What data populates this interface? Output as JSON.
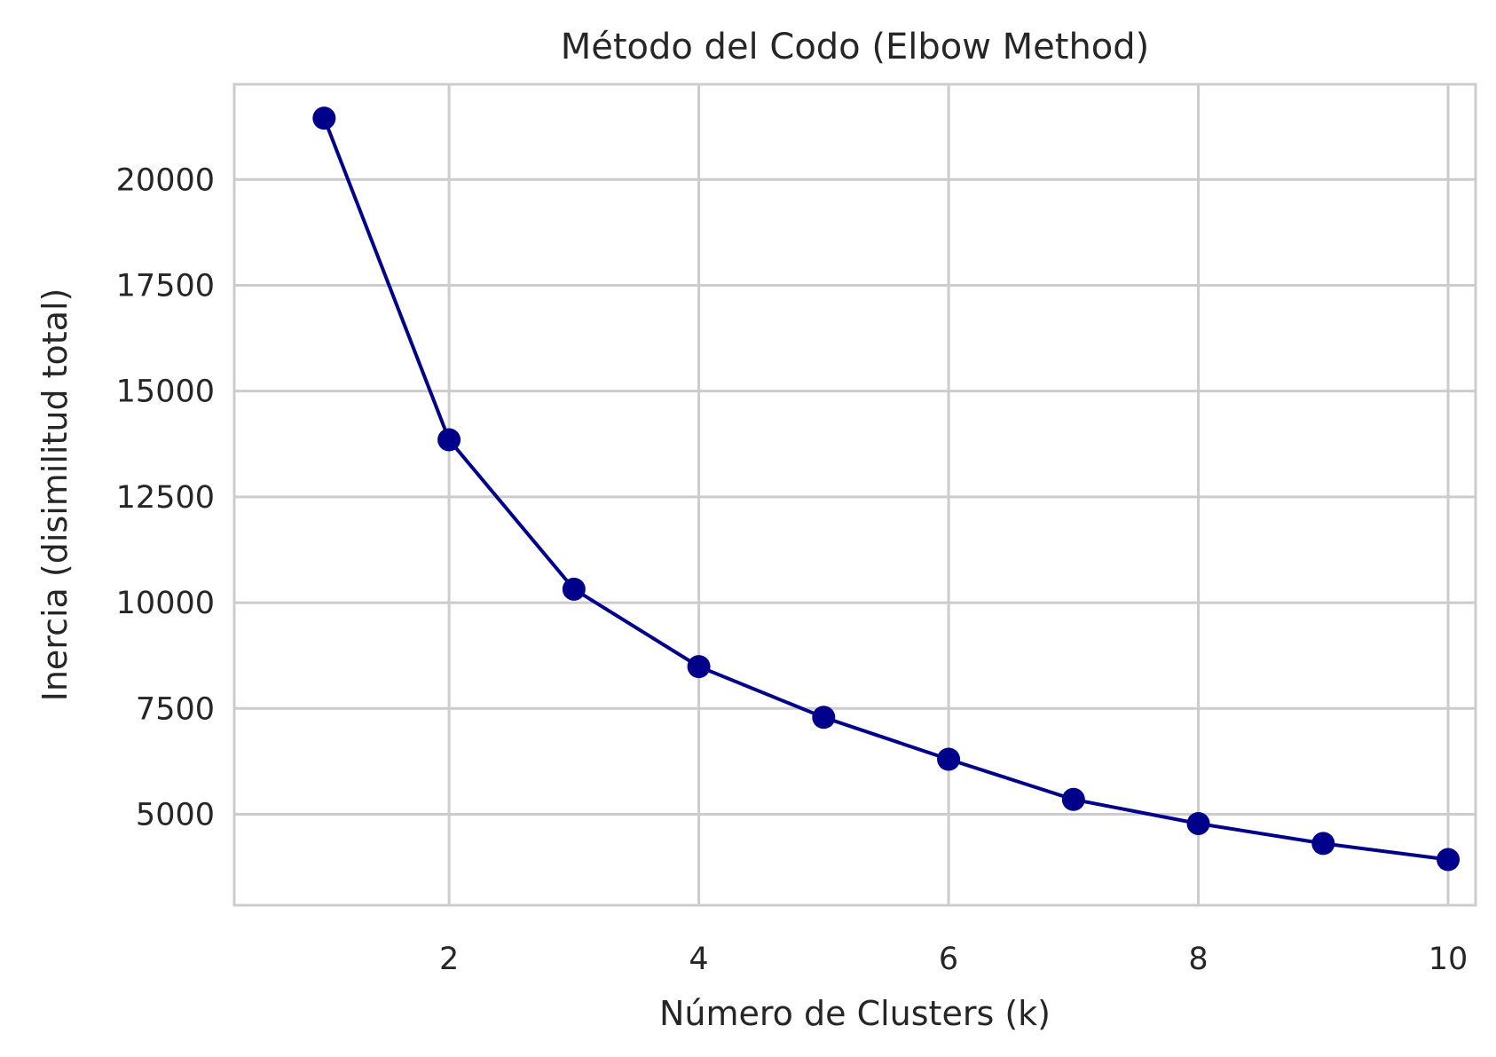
{
  "chart_data": {
    "type": "line",
    "title": "Método del Codo (Elbow Method)",
    "xlabel": "Número de Clusters (k)",
    "ylabel": "Inercia (disimilitud total)",
    "x": [
      1,
      2,
      3,
      4,
      5,
      6,
      7,
      8,
      9,
      10
    ],
    "series": [
      {
        "values": [
          21450,
          13850,
          10320,
          8490,
          7290,
          6300,
          5350,
          4780,
          4310,
          3930
        ],
        "color": "#00008b",
        "marker": "circle"
      }
    ],
    "xlim": [
      0.28,
      10.22
    ],
    "ylim": [
      2850,
      22250
    ],
    "xticks": [
      2,
      4,
      6,
      8,
      10
    ],
    "xtick_labels": [
      "2",
      "4",
      "6",
      "8",
      "10"
    ],
    "yticks": [
      5000,
      7500,
      10000,
      12500,
      15000,
      17500,
      20000
    ],
    "ytick_labels": [
      "5000",
      "7500",
      "10000",
      "12500",
      "15000",
      "17500",
      "20000"
    ],
    "grid": true,
    "legend": "none",
    "colors": {
      "grid": "#cccccc",
      "frame": "#cccccc",
      "text": "#262626",
      "background": "#ffffff"
    }
  }
}
